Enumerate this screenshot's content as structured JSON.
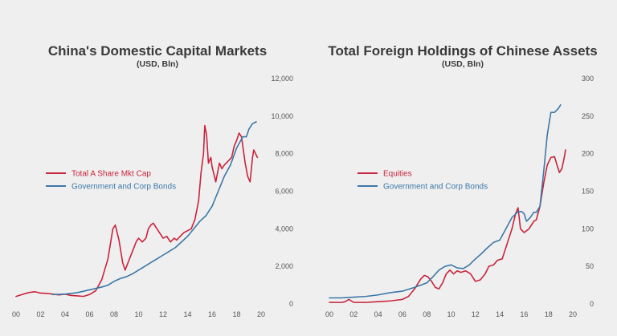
{
  "colors": {
    "red": "#c8243c",
    "blue": "#3c78a8",
    "text": "#3a3a3a",
    "background": "#efefef"
  },
  "chart_data": [
    {
      "type": "line",
      "title": "China's Domestic Capital Markets",
      "subtitle": "(USD, Bln)",
      "x_ticks": [
        "00",
        "02",
        "04",
        "06",
        "08",
        "10",
        "12",
        "14",
        "16",
        "18",
        "20"
      ],
      "xlim": [
        2000,
        2020
      ],
      "y_ticks": [
        "0",
        "2,000",
        "4,000",
        "6,000",
        "8,000",
        "10,000",
        "12,000"
      ],
      "ylim": [
        0,
        12000
      ],
      "y_axis_side": "right",
      "grid": false,
      "legend_position": "center-left",
      "series": [
        {
          "name": "Total A Share Mkt Cap",
          "color": "#c8243c",
          "points": [
            [
              2000.0,
              400
            ],
            [
              2000.5,
              500
            ],
            [
              2001.0,
              600
            ],
            [
              2001.5,
              650
            ],
            [
              2002.0,
              580
            ],
            [
              2002.5,
              560
            ],
            [
              2003.0,
              520
            ],
            [
              2003.5,
              480
            ],
            [
              2004.0,
              520
            ],
            [
              2004.5,
              450
            ],
            [
              2005.0,
              430
            ],
            [
              2005.5,
              400
            ],
            [
              2006.0,
              500
            ],
            [
              2006.5,
              700
            ],
            [
              2007.0,
              1300
            ],
            [
              2007.5,
              2400
            ],
            [
              2007.9,
              4000
            ],
            [
              2008.1,
              4200
            ],
            [
              2008.4,
              3400
            ],
            [
              2008.7,
              2200
            ],
            [
              2008.9,
              1800
            ],
            [
              2009.2,
              2300
            ],
            [
              2009.5,
              2800
            ],
            [
              2009.8,
              3300
            ],
            [
              2010.0,
              3500
            ],
            [
              2010.3,
              3300
            ],
            [
              2010.6,
              3500
            ],
            [
              2010.8,
              4000
            ],
            [
              2011.0,
              4200
            ],
            [
              2011.2,
              4300
            ],
            [
              2011.5,
              4000
            ],
            [
              2011.8,
              3700
            ],
            [
              2012.0,
              3500
            ],
            [
              2012.3,
              3600
            ],
            [
              2012.6,
              3300
            ],
            [
              2012.9,
              3500
            ],
            [
              2013.1,
              3400
            ],
            [
              2013.4,
              3600
            ],
            [
              2013.7,
              3800
            ],
            [
              2014.0,
              3900
            ],
            [
              2014.3,
              4000
            ],
            [
              2014.6,
              4500
            ],
            [
              2014.9,
              5500
            ],
            [
              2015.1,
              7000
            ],
            [
              2015.3,
              8000
            ],
            [
              2015.4,
              9500
            ],
            [
              2015.55,
              9000
            ],
            [
              2015.7,
              7500
            ],
            [
              2015.9,
              7800
            ],
            [
              2016.0,
              7300
            ],
            [
              2016.3,
              6500
            ],
            [
              2016.6,
              7500
            ],
            [
              2016.8,
              7200
            ],
            [
              2017.0,
              7400
            ],
            [
              2017.3,
              7600
            ],
            [
              2017.6,
              7800
            ],
            [
              2017.8,
              8400
            ],
            [
              2018.0,
              8700
            ],
            [
              2018.2,
              9100
            ],
            [
              2018.4,
              8900
            ],
            [
              2018.7,
              7500
            ],
            [
              2018.9,
              6800
            ],
            [
              2019.1,
              6500
            ],
            [
              2019.3,
              7800
            ],
            [
              2019.4,
              8200
            ],
            [
              2019.55,
              8000
            ],
            [
              2019.7,
              7800
            ]
          ]
        },
        {
          "name": "Government and Corp Bonds",
          "color": "#3c78a8",
          "points": [
            [
              2003.0,
              500
            ],
            [
              2004.0,
              520
            ],
            [
              2005.0,
              600
            ],
            [
              2006.0,
              750
            ],
            [
              2007.0,
              900
            ],
            [
              2007.5,
              1000
            ],
            [
              2008.0,
              1200
            ],
            [
              2008.5,
              1350
            ],
            [
              2009.0,
              1450
            ],
            [
              2009.5,
              1600
            ],
            [
              2010.0,
              1800
            ],
            [
              2010.5,
              2000
            ],
            [
              2011.0,
              2200
            ],
            [
              2011.5,
              2400
            ],
            [
              2012.0,
              2600
            ],
            [
              2012.5,
              2800
            ],
            [
              2013.0,
              3000
            ],
            [
              2013.5,
              3300
            ],
            [
              2014.0,
              3600
            ],
            [
              2014.5,
              4000
            ],
            [
              2015.0,
              4400
            ],
            [
              2015.5,
              4700
            ],
            [
              2016.0,
              5200
            ],
            [
              2016.5,
              6000
            ],
            [
              2017.0,
              6800
            ],
            [
              2017.5,
              7400
            ],
            [
              2018.0,
              8300
            ],
            [
              2018.5,
              8900
            ],
            [
              2018.8,
              8900
            ],
            [
              2019.0,
              9300
            ],
            [
              2019.3,
              9600
            ],
            [
              2019.6,
              9700
            ]
          ]
        }
      ]
    },
    {
      "type": "line",
      "title": "Total Foreign Holdings of Chinese Assets",
      "subtitle": "(USD, Bln)",
      "x_ticks": [
        "00",
        "02",
        "04",
        "06",
        "08",
        "10",
        "12",
        "14",
        "16",
        "18",
        "20"
      ],
      "xlim": [
        2000,
        2020
      ],
      "y_ticks": [
        "0",
        "50",
        "100",
        "150",
        "200",
        "250",
        "300"
      ],
      "ylim": [
        0,
        300
      ],
      "y_axis_side": "right",
      "grid": false,
      "legend_position": "center-left",
      "series": [
        {
          "name": "Equities",
          "color": "#c8243c",
          "points": [
            [
              2000.0,
              2
            ],
            [
              2001.0,
              2
            ],
            [
              2001.3,
              3
            ],
            [
              2001.6,
              6
            ],
            [
              2002.0,
              2
            ],
            [
              2003.0,
              2
            ],
            [
              2004.0,
              3
            ],
            [
              2005.0,
              4
            ],
            [
              2006.0,
              6
            ],
            [
              2006.5,
              10
            ],
            [
              2007.0,
              20
            ],
            [
              2007.5,
              33
            ],
            [
              2007.8,
              38
            ],
            [
              2008.1,
              36
            ],
            [
              2008.4,
              30
            ],
            [
              2008.7,
              22
            ],
            [
              2009.0,
              20
            ],
            [
              2009.3,
              28
            ],
            [
              2009.6,
              40
            ],
            [
              2009.9,
              45
            ],
            [
              2010.2,
              40
            ],
            [
              2010.5,
              44
            ],
            [
              2010.8,
              42
            ],
            [
              2011.2,
              44
            ],
            [
              2011.6,
              40
            ],
            [
              2012.0,
              30
            ],
            [
              2012.4,
              32
            ],
            [
              2012.8,
              40
            ],
            [
              2013.1,
              50
            ],
            [
              2013.5,
              52
            ],
            [
              2013.8,
              58
            ],
            [
              2014.2,
              60
            ],
            [
              2014.6,
              80
            ],
            [
              2015.0,
              100
            ],
            [
              2015.3,
              120
            ],
            [
              2015.5,
              128
            ],
            [
              2015.7,
              100
            ],
            [
              2016.0,
              95
            ],
            [
              2016.4,
              100
            ],
            [
              2016.8,
              110
            ],
            [
              2017.0,
              112
            ],
            [
              2017.3,
              130
            ],
            [
              2017.6,
              160
            ],
            [
              2017.9,
              185
            ],
            [
              2018.2,
              195
            ],
            [
              2018.5,
              196
            ],
            [
              2018.7,
              185
            ],
            [
              2018.9,
              175
            ],
            [
              2019.1,
              180
            ],
            [
              2019.3,
              195
            ],
            [
              2019.4,
              205
            ]
          ]
        },
        {
          "name": "Government and Corp Bonds",
          "color": "#3c78a8",
          "points": [
            [
              2000.0,
              8
            ],
            [
              2001.0,
              8
            ],
            [
              2002.0,
              9
            ],
            [
              2003.0,
              10
            ],
            [
              2004.0,
              12
            ],
            [
              2005.0,
              15
            ],
            [
              2006.0,
              17
            ],
            [
              2007.0,
              22
            ],
            [
              2008.0,
              28
            ],
            [
              2008.5,
              36
            ],
            [
              2009.0,
              45
            ],
            [
              2009.5,
              50
            ],
            [
              2010.0,
              52
            ],
            [
              2010.5,
              48
            ],
            [
              2011.0,
              47
            ],
            [
              2011.5,
              52
            ],
            [
              2012.0,
              60
            ],
            [
              2012.5,
              67
            ],
            [
              2013.0,
              75
            ],
            [
              2013.5,
              82
            ],
            [
              2014.0,
              85
            ],
            [
              2014.5,
              100
            ],
            [
              2015.0,
              115
            ],
            [
              2015.5,
              123
            ],
            [
              2015.8,
              123
            ],
            [
              2016.0,
              120
            ],
            [
              2016.2,
              110
            ],
            [
              2016.5,
              115
            ],
            [
              2016.8,
              122
            ],
            [
              2017.0,
              122
            ],
            [
              2017.3,
              130
            ],
            [
              2017.6,
              175
            ],
            [
              2017.9,
              225
            ],
            [
              2018.2,
              255
            ],
            [
              2018.5,
              255
            ],
            [
              2018.8,
              260
            ],
            [
              2019.0,
              265
            ]
          ]
        }
      ]
    }
  ]
}
